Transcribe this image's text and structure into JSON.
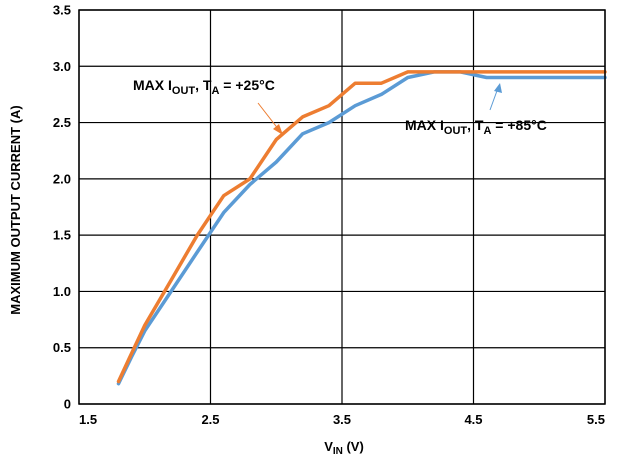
{
  "chart_data": {
    "type": "line",
    "xlabel": {
      "main": "V",
      "sub": "IN",
      "tail": " (V)"
    },
    "ylabel": "MAXIMUM OUTPUT CURRENT (A)",
    "xlim": [
      1.5,
      5.5
    ],
    "ylim": [
      0,
      3.5
    ],
    "x_ticks": [
      "1.5",
      "2.5",
      "3.5",
      "4.5",
      "5.5"
    ],
    "y_ticks": [
      "0",
      "0.5",
      "1.0",
      "1.5",
      "2.0",
      "2.5",
      "3.0",
      "3.5"
    ],
    "grid": true,
    "series": [
      {
        "name": "MAX IOUT, TA = +25°C",
        "color": "#ed7d31",
        "x": [
          1.8,
          1.9,
          2.0,
          2.2,
          2.4,
          2.6,
          2.8,
          3.0,
          3.2,
          3.4,
          3.6,
          3.8,
          4.0,
          4.2,
          4.4,
          4.6,
          4.8,
          5.0,
          5.2,
          5.5
        ],
        "y": [
          0.2,
          0.45,
          0.7,
          1.1,
          1.5,
          1.85,
          2.0,
          2.35,
          2.55,
          2.65,
          2.85,
          2.85,
          2.95,
          2.95,
          2.95,
          2.95,
          2.95,
          2.95,
          2.95,
          2.95
        ]
      },
      {
        "name": "MAX IOUT, TA = +85°C",
        "color": "#5b9bd5",
        "x": [
          1.8,
          1.9,
          2.0,
          2.2,
          2.4,
          2.6,
          2.8,
          3.0,
          3.2,
          3.4,
          3.6,
          3.8,
          4.0,
          4.2,
          4.4,
          4.6,
          4.8,
          5.0,
          5.2,
          5.5
        ],
        "y": [
          0.18,
          0.42,
          0.65,
          1.0,
          1.35,
          1.7,
          1.95,
          2.15,
          2.4,
          2.5,
          2.65,
          2.75,
          2.9,
          2.95,
          2.95,
          2.9,
          2.9,
          2.9,
          2.9,
          2.9
        ]
      }
    ],
    "annotations": [
      {
        "pre": "MAX I",
        "sub1": "OUT",
        "mid": ", T",
        "sub2": "A",
        "post": " = +25°C",
        "color": "#ed7d31"
      },
      {
        "pre": "MAX I",
        "sub1": "OUT",
        "mid": ", T",
        "sub2": "A",
        "post": " = +85°C",
        "color": "#5b9bd5"
      }
    ]
  }
}
